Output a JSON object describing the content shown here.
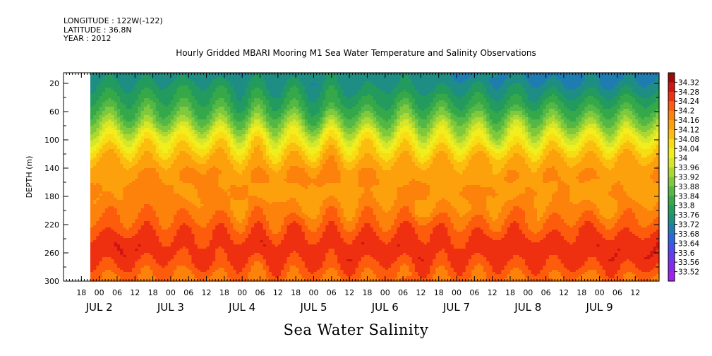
{
  "header": {
    "longitude": "LONGITUDE : 122W(-122)",
    "latitude": "LATITUDE : 36.8N",
    "year": "YEAR : 2012",
    "title": "Hourly Gridded MBARI Mooring M1 Sea Water Temperature and Salinity Observations",
    "variable_title": "Sea Water Salinity"
  },
  "chart_data": {
    "type": "heatmap",
    "title": "Hourly Gridded MBARI Mooring M1 Sea Water Temperature and Salinity Observations",
    "variable": "Sea Water Salinity",
    "ylabel": "DEPTH (m)",
    "y_ticks": [
      20,
      60,
      100,
      140,
      180,
      220,
      260,
      300
    ],
    "ylim": [
      300,
      5
    ],
    "x_hour_ticks": [
      "18",
      "00",
      "06",
      "12",
      "18",
      "00",
      "06",
      "12",
      "18",
      "00",
      "06",
      "12",
      "18",
      "00",
      "06",
      "12",
      "18",
      "00",
      "06",
      "12",
      "18",
      "00",
      "06",
      "12",
      "18",
      "00",
      "06",
      "12",
      "18",
      "00",
      "06",
      "12"
    ],
    "x_day_labels": [
      "JUL 2",
      "JUL 3",
      "JUL 4",
      "JUL 5",
      "JUL 6",
      "JUL 7",
      "JUL 8",
      "JUL 9"
    ],
    "xlim_hours_from_jul1_12": [
      0,
      200
    ],
    "data_start_hour": 9,
    "colorbar_levels": [
      "34.32",
      "34.28",
      "34.24",
      "34.2",
      "34.16",
      "34.12",
      "34.08",
      "34.04",
      "34",
      "33.96",
      "33.92",
      "33.88",
      "33.84",
      "33.8",
      "33.76",
      "33.72",
      "33.68",
      "33.64",
      "33.6",
      "33.56",
      "33.52"
    ],
    "depth_profile": [
      {
        "depth": 5,
        "salinity": 33.73
      },
      {
        "depth": 20,
        "salinity": 33.75
      },
      {
        "depth": 40,
        "salinity": 33.79
      },
      {
        "depth": 60,
        "salinity": 33.84
      },
      {
        "depth": 80,
        "salinity": 33.92
      },
      {
        "depth": 100,
        "salinity": 34.02
      },
      {
        "depth": 120,
        "salinity": 34.1
      },
      {
        "depth": 140,
        "salinity": 34.15
      },
      {
        "depth": 160,
        "salinity": 34.16
      },
      {
        "depth": 180,
        "salinity": 34.155
      },
      {
        "depth": 200,
        "salinity": 34.17
      },
      {
        "depth": 220,
        "salinity": 34.22
      },
      {
        "depth": 240,
        "salinity": 34.25
      },
      {
        "depth": 255,
        "salinity": 34.27
      },
      {
        "depth": 270,
        "salinity": 34.25
      },
      {
        "depth": 290,
        "salinity": 34.21
      },
      {
        "depth": 300,
        "salinity": 34.19
      }
    ]
  }
}
